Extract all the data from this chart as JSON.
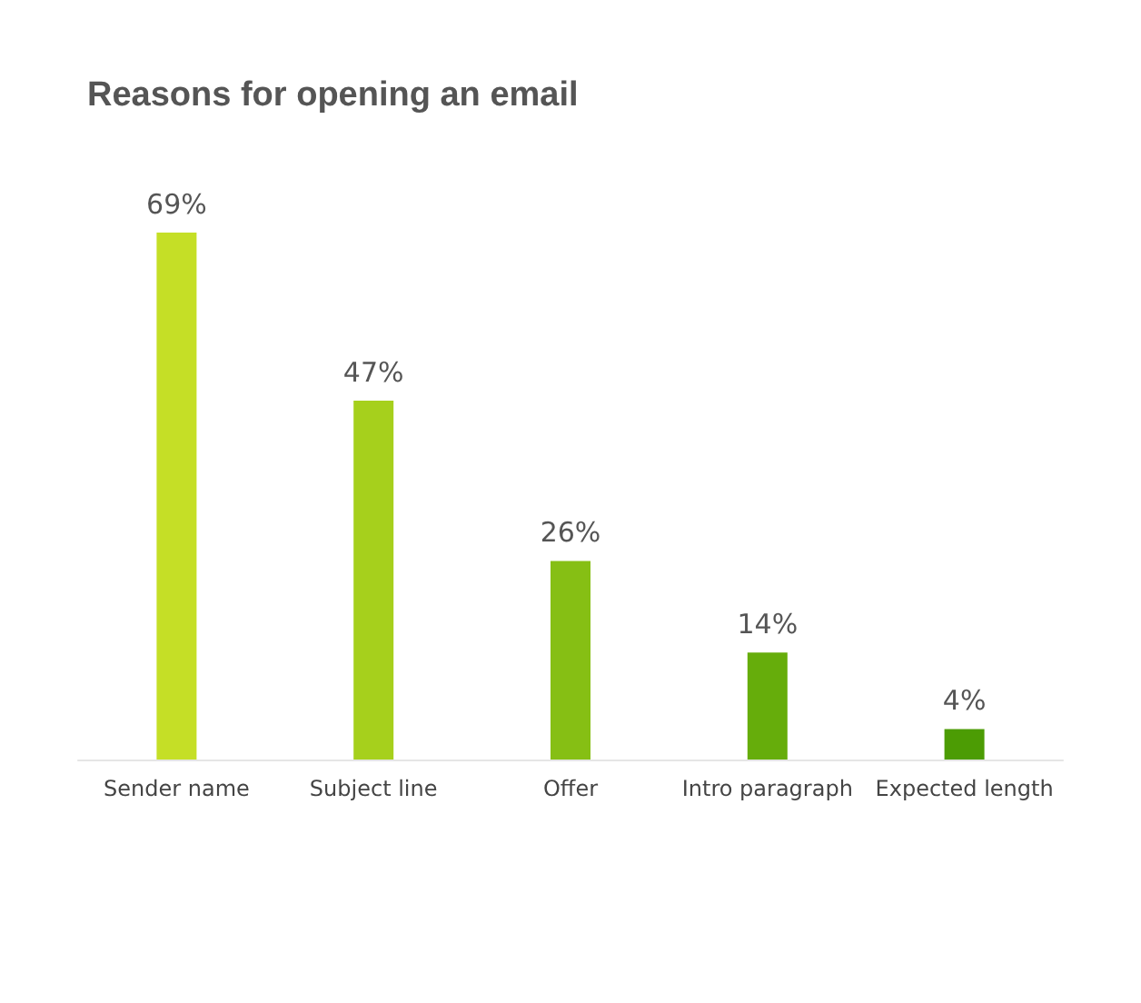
{
  "chart_data": {
    "type": "bar",
    "title": "Reasons for opening an email",
    "categories": [
      "Sender name",
      "Subject line",
      "Offer",
      "Intro paragraph",
      "Expected length"
    ],
    "values": [
      69,
      47,
      26,
      14,
      4
    ],
    "colors": [
      "#c5df26",
      "#a6d01c",
      "#86bf14",
      "#66ad0b",
      "#4c9c04"
    ],
    "value_labels": [
      "69%",
      "47%",
      "26%",
      "14%",
      "4%"
    ]
  }
}
